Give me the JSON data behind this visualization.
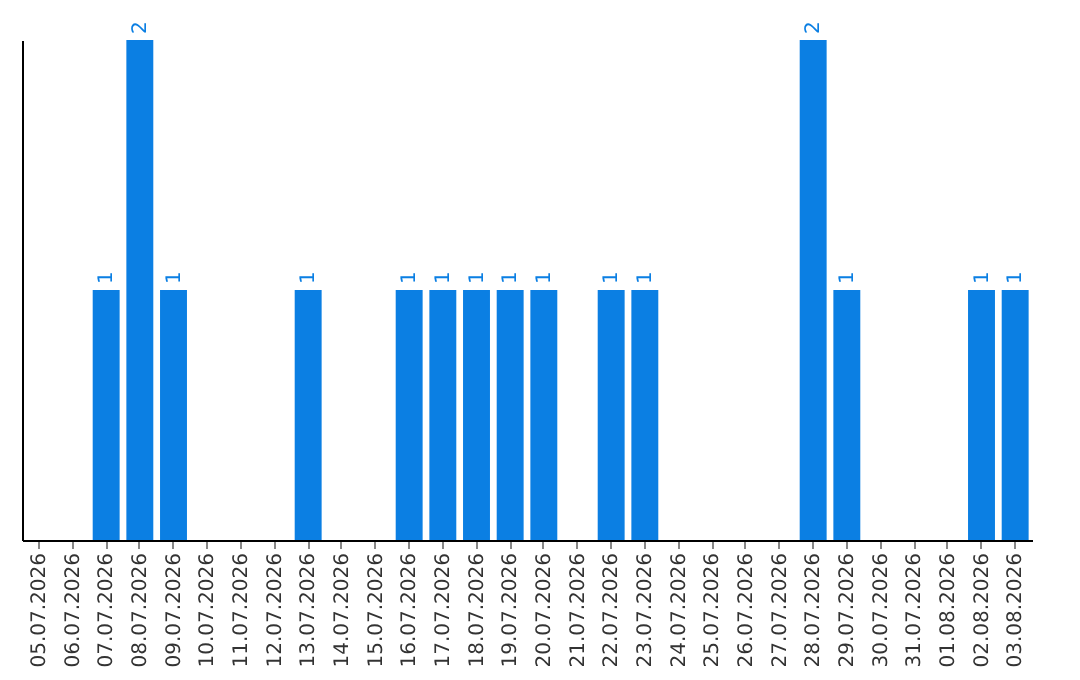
{
  "chart_data": {
    "type": "bar",
    "categories": [
      "05.07.2026",
      "06.07.2026",
      "07.07.2026",
      "08.07.2026",
      "09.07.2026",
      "10.07.2026",
      "11.07.2026",
      "12.07.2026",
      "13.07.2026",
      "14.07.2026",
      "15.07.2026",
      "16.07.2026",
      "17.07.2026",
      "18.07.2026",
      "19.07.2026",
      "20.07.2026",
      "21.07.2026",
      "22.07.2026",
      "23.07.2026",
      "24.07.2026",
      "25.07.2026",
      "26.07.2026",
      "27.07.2026",
      "28.07.2026",
      "29.07.2026",
      "30.07.2026",
      "31.07.2026",
      "01.08.2026",
      "02.08.2026",
      "03.08.2026"
    ],
    "values": [
      0,
      0,
      1,
      2,
      1,
      0,
      0,
      0,
      1,
      0,
      0,
      1,
      1,
      1,
      1,
      1,
      0,
      1,
      1,
      0,
      0,
      0,
      0,
      2,
      1,
      0,
      0,
      0,
      1,
      1
    ],
    "value_labels": [
      null,
      null,
      "1",
      "2",
      "1",
      null,
      null,
      null,
      "1",
      null,
      null,
      "1",
      "1",
      "1",
      "1",
      "1",
      null,
      "1",
      "1",
      null,
      null,
      null,
      null,
      "2",
      "1",
      null,
      null,
      null,
      "1",
      "1"
    ],
    "color": "#0b7fe3",
    "ylim": [
      0,
      2
    ],
    "tick_labels": "x",
    "grid": false
  }
}
